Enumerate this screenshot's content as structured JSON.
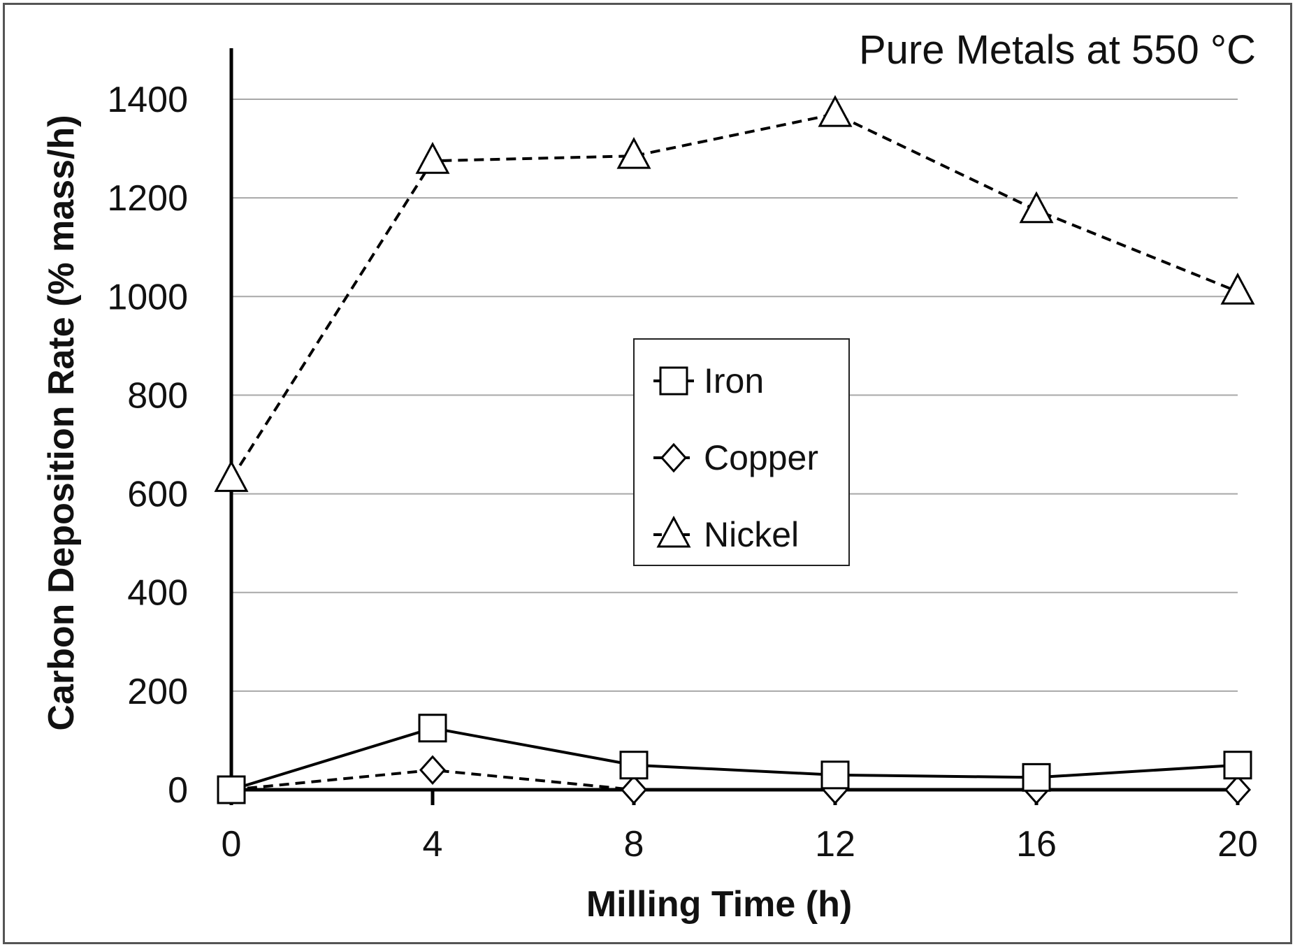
{
  "chart_data": {
    "type": "line",
    "title": "Pure Metals at 550 °C",
    "xlabel": "Milling Time (h)",
    "ylabel": "Carbon Deposition Rate (% mass/h)",
    "x": [
      0,
      4,
      8,
      12,
      16,
      20
    ],
    "xticks": [
      "0",
      "4",
      "8",
      "12",
      "16",
      "20"
    ],
    "yticks": [
      "0",
      "200",
      "400",
      "600",
      "800",
      "1000",
      "1200",
      "1400"
    ],
    "xlim": [
      0,
      20
    ],
    "ylim": [
      0,
      1400
    ],
    "grid": "horizontal",
    "legend_position": "center",
    "series": [
      {
        "name": "Iron",
        "values": [
          0,
          125,
          50,
          30,
          25,
          50
        ],
        "marker": "square",
        "line": "solid"
      },
      {
        "name": "Copper",
        "values": [
          0,
          40,
          0,
          0,
          0,
          0
        ],
        "marker": "diamond",
        "line": "dashed"
      },
      {
        "name": "Nickel",
        "values": [
          630,
          1275,
          1285,
          1370,
          1175,
          1010
        ],
        "marker": "triangle",
        "line": "dashed"
      }
    ]
  }
}
